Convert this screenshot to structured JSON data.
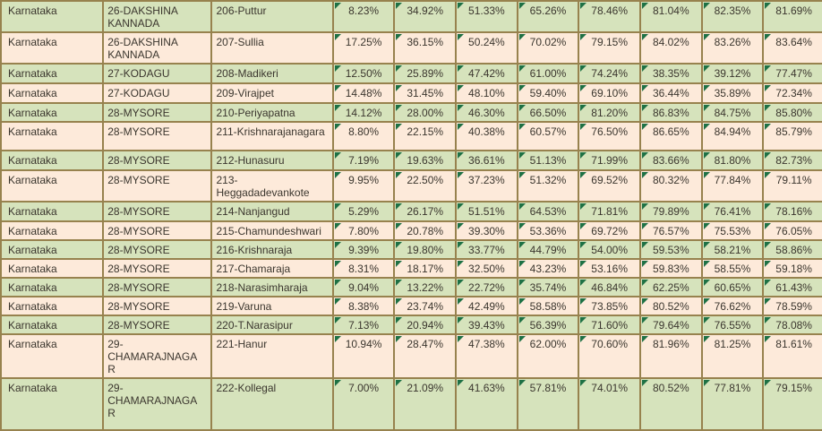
{
  "colors": {
    "row_green": "#d6e3bc",
    "row_cream": "#fdeada",
    "grid_border": "#97824e",
    "flag_green": "#1e7145",
    "text": "#3b362e"
  },
  "icons": {
    "cell_flag_triangle": "green corner triangle (cell flag marker)"
  },
  "table": {
    "rows": [
      {
        "state": "Karnataka",
        "district": "26-DAKSHINA KANNADA",
        "constituency": "206-Puttur",
        "values": [
          "8.23%",
          "34.92%",
          "51.33%",
          "65.26%",
          "78.46%",
          "81.04%",
          "82.35%",
          "81.69%"
        ]
      },
      {
        "state": "Karnataka",
        "district": "26-DAKSHINA KANNADA",
        "constituency": "207-Sullia",
        "values": [
          "17.25%",
          "36.15%",
          "50.24%",
          "70.02%",
          "79.15%",
          "84.02%",
          "83.26%",
          "83.64%"
        ]
      },
      {
        "state": "Karnataka",
        "district": "27-KODAGU",
        "constituency": "208-Madikeri",
        "values": [
          "12.50%",
          "25.89%",
          "47.42%",
          "61.00%",
          "74.24%",
          "38.35%",
          "39.12%",
          "77.47%"
        ]
      },
      {
        "state": "Karnataka",
        "district": "27-KODAGU",
        "constituency": "209-Virajpet",
        "values": [
          "14.48%",
          "31.45%",
          "48.10%",
          "59.40%",
          "69.10%",
          "36.44%",
          "35.89%",
          "72.34%"
        ]
      },
      {
        "state": "Karnataka",
        "district": "28-MYSORE",
        "constituency": "210-Periyapatna",
        "values": [
          "14.12%",
          "28.00%",
          "46.30%",
          "66.50%",
          "81.20%",
          "86.83%",
          "84.75%",
          "85.80%"
        ]
      },
      {
        "state": "Karnataka",
        "district": "28-MYSORE",
        "constituency": "211-Krishnarajanagara",
        "values": [
          "8.80%",
          "22.15%",
          "40.38%",
          "60.57%",
          "76.50%",
          "86.65%",
          "84.94%",
          "85.79%"
        ]
      },
      {
        "state": "Karnataka",
        "district": "28-MYSORE",
        "constituency": "212-Hunasuru",
        "values": [
          "7.19%",
          "19.63%",
          "36.61%",
          "51.13%",
          "71.99%",
          "83.66%",
          "81.80%",
          "82.73%"
        ]
      },
      {
        "state": "Karnataka",
        "district": "28-MYSORE",
        "constituency": "213-Heggadadevankote",
        "values": [
          "9.95%",
          "22.50%",
          "37.23%",
          "51.32%",
          "69.52%",
          "80.32%",
          "77.84%",
          "79.11%"
        ]
      },
      {
        "state": "Karnataka",
        "district": "28-MYSORE",
        "constituency": "214-Nanjangud",
        "values": [
          "5.29%",
          "26.17%",
          "51.51%",
          "64.53%",
          "71.81%",
          "79.89%",
          "76.41%",
          "78.16%"
        ]
      },
      {
        "state": "Karnataka",
        "district": "28-MYSORE",
        "constituency": "215-Chamundeshwari",
        "values": [
          "7.80%",
          "20.78%",
          "39.30%",
          "53.36%",
          "69.72%",
          "76.57%",
          "75.53%",
          "76.05%"
        ]
      },
      {
        "state": "Karnataka",
        "district": "28-MYSORE",
        "constituency": "216-Krishnaraja",
        "values": [
          "9.39%",
          "19.80%",
          "33.77%",
          "44.79%",
          "54.00%",
          "59.53%",
          "58.21%",
          "58.86%"
        ]
      },
      {
        "state": "Karnataka",
        "district": "28-MYSORE",
        "constituency": "217-Chamaraja",
        "values": [
          "8.31%",
          "18.17%",
          "32.50%",
          "43.23%",
          "53.16%",
          "59.83%",
          "58.55%",
          "59.18%"
        ]
      },
      {
        "state": "Karnataka",
        "district": "28-MYSORE",
        "constituency": "218-Narasimharaja",
        "values": [
          "9.04%",
          "13.22%",
          "22.72%",
          "35.74%",
          "46.84%",
          "62.25%",
          "60.65%",
          "61.43%"
        ]
      },
      {
        "state": "Karnataka",
        "district": "28-MYSORE",
        "constituency": "219-Varuna",
        "values": [
          "8.38%",
          "23.74%",
          "42.49%",
          "58.58%",
          "73.85%",
          "80.52%",
          "76.62%",
          "78.59%"
        ]
      },
      {
        "state": "Karnataka",
        "district": "28-MYSORE",
        "constituency": "220-T.Narasipur",
        "values": [
          "7.13%",
          "20.94%",
          "39.43%",
          "56.39%",
          "71.60%",
          "79.64%",
          "76.55%",
          "78.08%"
        ]
      },
      {
        "state": "Karnataka",
        "district": "29-CHAMARAJNAGAR",
        "constituency": "221-Hanur",
        "values": [
          "10.94%",
          "28.47%",
          "47.38%",
          "62.00%",
          "70.60%",
          "81.96%",
          "81.25%",
          "81.61%"
        ]
      },
      {
        "state": "Karnataka",
        "district": "29-CHAMARAJNAGAR",
        "constituency": "222-Kollegal",
        "values": [
          "7.00%",
          "21.09%",
          "41.63%",
          "57.81%",
          "74.01%",
          "80.52%",
          "77.81%",
          "79.15%"
        ]
      }
    ]
  }
}
